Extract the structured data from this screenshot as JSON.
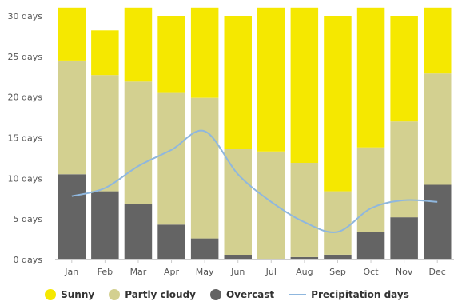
{
  "chart_data": {
    "type": "bar",
    "stacked": true,
    "categories": [
      "Jan",
      "Feb",
      "Mar",
      "Apr",
      "May",
      "Jun",
      "Jul",
      "Aug",
      "Sep",
      "Oct",
      "Nov",
      "Dec"
    ],
    "series": [
      {
        "name": "Overcast",
        "color": "#646464",
        "values": [
          10.5,
          8.4,
          6.8,
          4.3,
          2.6,
          0.5,
          0.1,
          0.3,
          0.6,
          3.4,
          5.2,
          9.2
        ]
      },
      {
        "name": "Partly cloudy",
        "color": "#d3d090",
        "values": [
          14.0,
          14.3,
          15.1,
          16.3,
          17.3,
          13.1,
          13.2,
          11.6,
          7.8,
          10.4,
          11.8,
          13.7
        ]
      },
      {
        "name": "Sunny",
        "color": "#f5e800",
        "values": [
          6.5,
          5.5,
          9.1,
          9.4,
          11.1,
          16.4,
          17.7,
          19.1,
          21.6,
          17.2,
          13.0,
          8.1
        ]
      }
    ],
    "line_series": {
      "name": "Precipitation days",
      "color": "#8fb7de",
      "values": [
        7.8,
        8.8,
        11.5,
        13.5,
        15.8,
        10.5,
        7.1,
        4.6,
        3.4,
        6.3,
        7.3,
        7.1
      ]
    },
    "yticks": [
      "0 days",
      "5 days",
      "10 days",
      "15 days",
      "20 days",
      "25 days",
      "30 days"
    ],
    "ylim": [
      0,
      30
    ],
    "legend_position": "bottom",
    "grid": false
  },
  "legend": [
    {
      "label": "Sunny",
      "color": "#f5e800",
      "kind": "dot"
    },
    {
      "label": "Partly cloudy",
      "color": "#d3d090",
      "kind": "dot"
    },
    {
      "label": "Overcast",
      "color": "#646464",
      "kind": "dot"
    },
    {
      "label": "Precipitation days",
      "color": "#8fb7de",
      "kind": "line"
    }
  ]
}
